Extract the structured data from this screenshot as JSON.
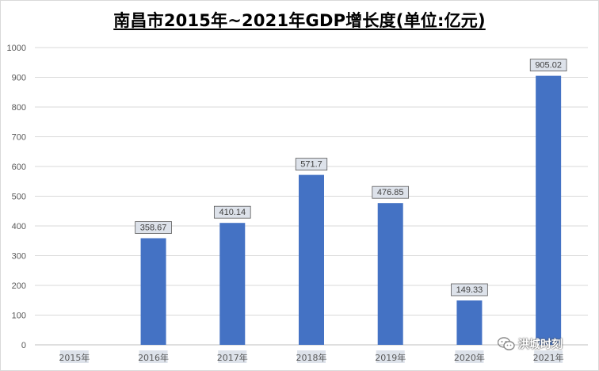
{
  "chart_data": {
    "type": "bar",
    "title": "南昌市2015年~2021年GDP增长度(单位:亿元)",
    "categories": [
      "2015年",
      "2016年",
      "2017年",
      "2018年",
      "2019年",
      "2020年",
      "2021年"
    ],
    "values": [
      null,
      358.67,
      410.14,
      571.7,
      476.85,
      149.33,
      905.02
    ],
    "data_labels": [
      "",
      "358.67",
      "410.14",
      "571.7",
      "476.85",
      "149.33",
      "905.02"
    ],
    "xlabel": "",
    "ylabel": "",
    "ylim": [
      0,
      1000
    ],
    "yticks": [
      0,
      100,
      200,
      300,
      400,
      500,
      600,
      700,
      800,
      900,
      1000
    ],
    "grid": true,
    "bar_color": "#4472C4",
    "legend": "none"
  },
  "watermark": {
    "icon": "wechat-icon",
    "text": "洪城时刻"
  }
}
